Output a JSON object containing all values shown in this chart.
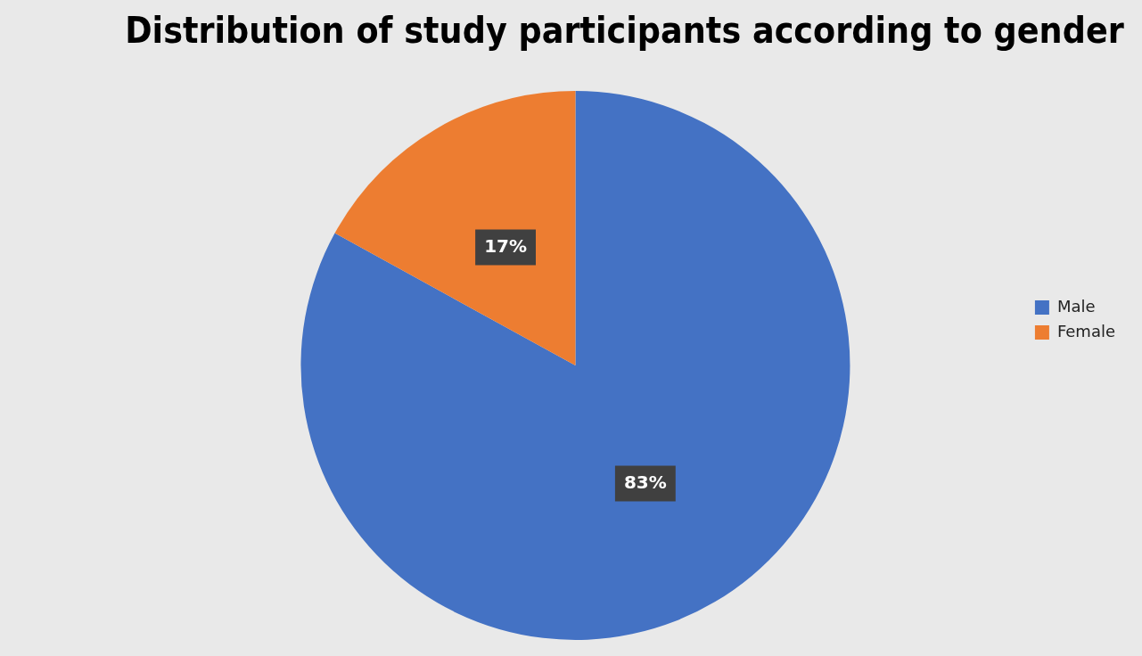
{
  "chart_data": {
    "type": "pie",
    "title": "Distribution of study participants according to gender",
    "categories": [
      "Male",
      "Female"
    ],
    "values": [
      83,
      17
    ],
    "colors": [
      "#4472c4",
      "#ed7d31"
    ],
    "value_labels": [
      "83%",
      "17%"
    ],
    "legend": "right"
  }
}
